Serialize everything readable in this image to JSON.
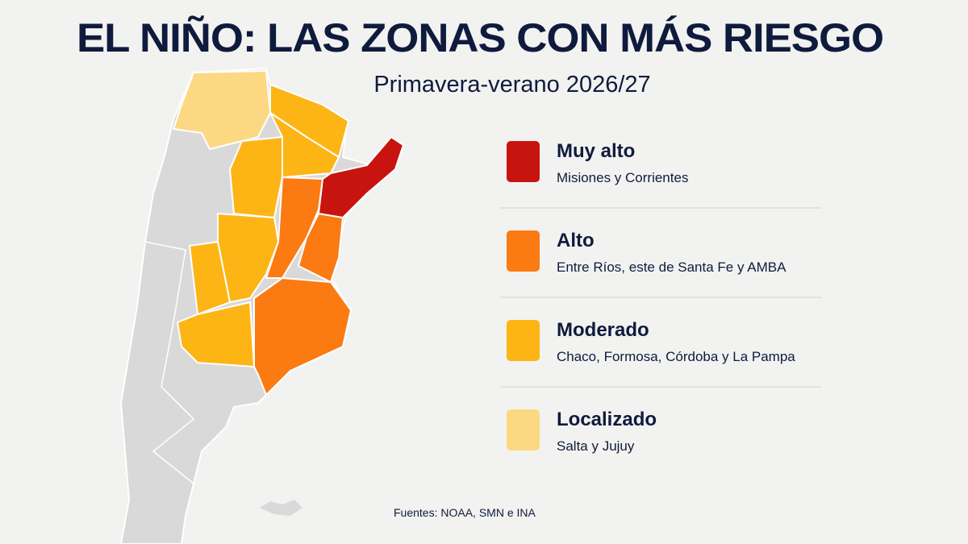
{
  "header": {
    "title": "EL NIÑO: LAS ZONAS CON MÁS RIESGO",
    "subtitle": "Primavera-verano 2026/27"
  },
  "legend": [
    {
      "label": "Muy alto",
      "description": "Misiones y Corrientes",
      "color": "#c8140f"
    },
    {
      "label": "Alto",
      "description": "Entre Ríos, este de Santa Fe y AMBA",
      "color": "#fb7a12"
    },
    {
      "label": "Moderado",
      "description": "Chaco, Formosa, Córdoba y La Pampa",
      "color": "#fdb515"
    },
    {
      "label": "Localizado",
      "description": "Salta y Jujuy",
      "color": "#fcd882"
    }
  ],
  "source": "Fuentes: NOAA, SMN e INA"
}
